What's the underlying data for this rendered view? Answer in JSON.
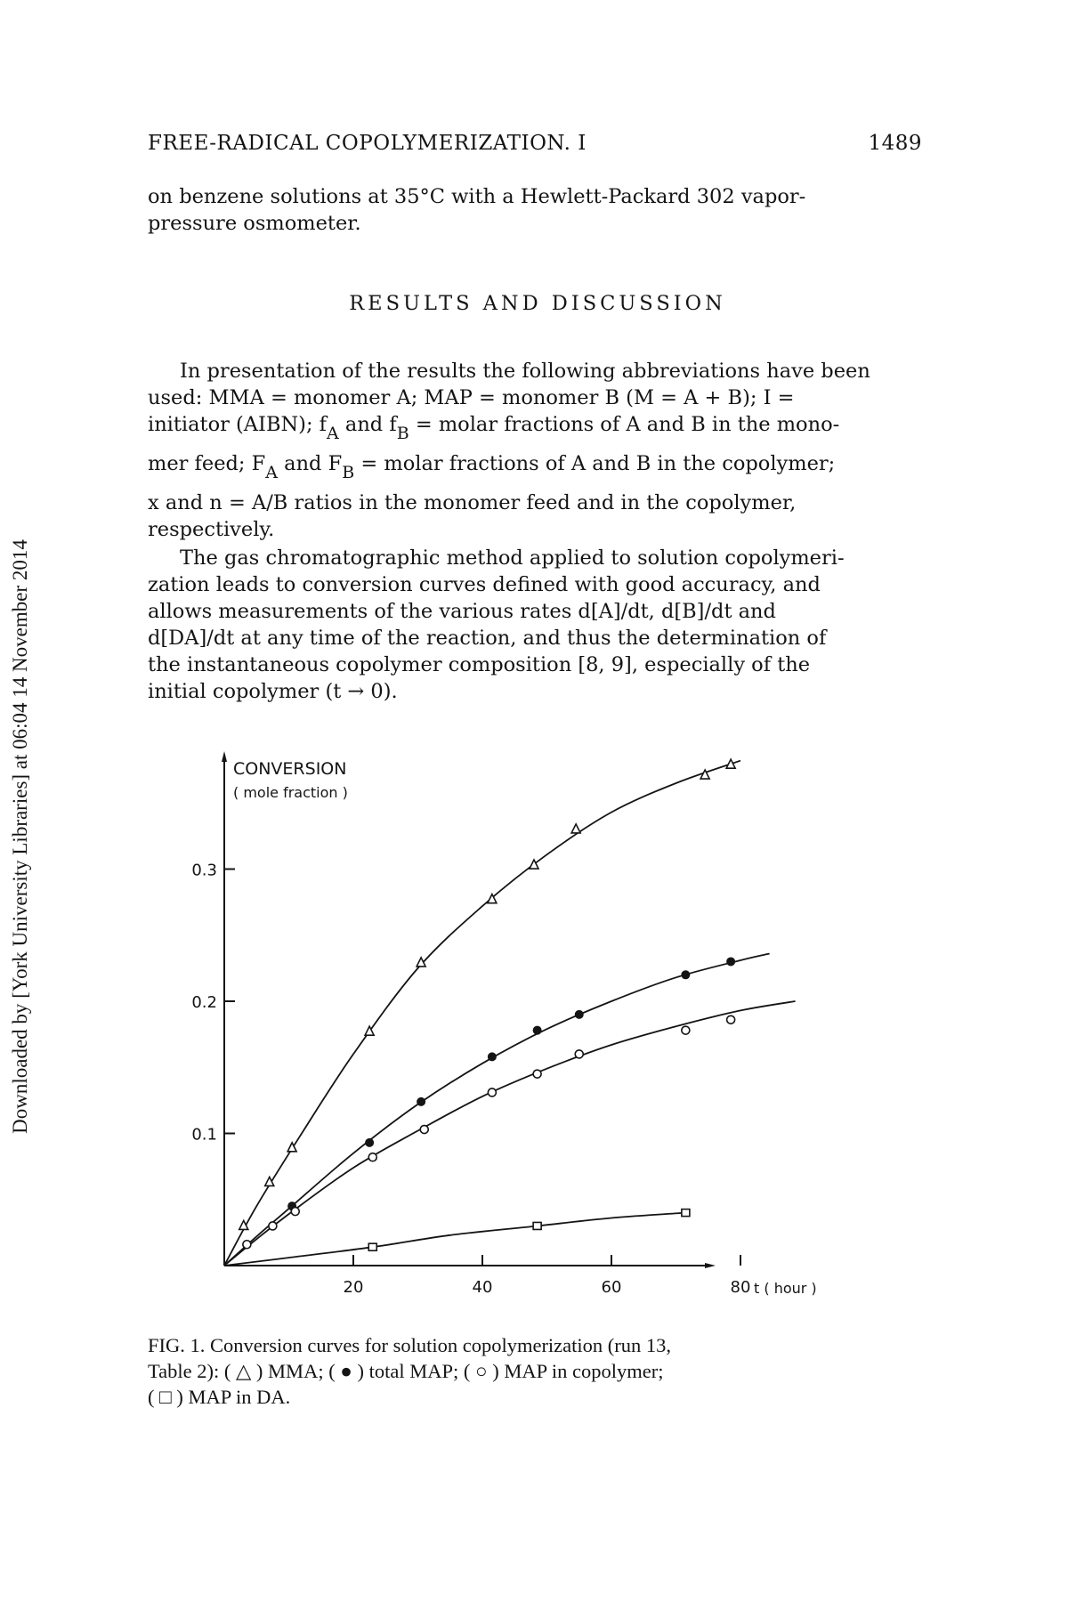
{
  "sidebar_note": "Downloaded by [York University Libraries] at 06:04 14 November 2014",
  "header": {
    "title": "FREE-RADICAL COPOLYMERIZATION. I",
    "page_number": "1489"
  },
  "intro_lines": [
    "on benzene solutions at 35°C with a Hewlett-Packard 302 vapor-",
    "pressure osmometer."
  ],
  "section_heading": "RESULTS AND DISCUSSION",
  "para1": {
    "line1": "In presentation of the results the following abbreviations have been",
    "line2": "used: MMA = monomer A; MAP = monomer B (M = A + B); I =",
    "line3_a": "initiator (AIBN); f",
    "line3_sub1": "A",
    "line3_b": " and f",
    "line3_sub2": "B",
    "line3_c": " = molar fractions of A and B in the mono-",
    "line4_a": "mer feed; F",
    "line4_sub1": "A",
    "line4_b": " and F",
    "line4_sub2": "B",
    "line4_c": " = molar fractions of A and B in the copolymer;",
    "line5": "x and n = A/B ratios in the monomer feed and in the copolymer,",
    "line6": "respectively."
  },
  "para2_lines": [
    "The gas chromatographic method applied to solution copolymeri-",
    "zation leads to conversion curves defined with good accuracy, and",
    "allows measurements of the various rates d[A]/dt, d[B]/dt and",
    "d[DA]/dt at any time of the reaction, and thus the determination of",
    "the instantaneous copolymer composition [8, 9], especially of the",
    "initial copolymer (t → 0)."
  ],
  "chart_data": {
    "type": "line",
    "ylabel": "CONVERSION",
    "ylabel_sub": "( mole fraction )",
    "xlabel": "t ( hour )",
    "xlim": [
      0,
      90
    ],
    "ylim": [
      0,
      0.4
    ],
    "x_ticks": [
      20,
      40,
      60,
      80
    ],
    "x_tick_labels": [
      "20",
      "40",
      "60",
      "80"
    ],
    "y_ticks": [
      0.1,
      0.2,
      0.3
    ],
    "y_tick_labels": [
      "0.1",
      "0.2",
      "0.3"
    ],
    "grid": false,
    "series": [
      {
        "marker": "triangle",
        "points": [
          [
            3,
            0.03
          ],
          [
            7,
            0.063
          ],
          [
            10.5,
            0.089
          ],
          [
            22.5,
            0.177
          ],
          [
            30.5,
            0.229
          ],
          [
            41.5,
            0.277
          ],
          [
            48,
            0.303
          ],
          [
            54.5,
            0.33
          ],
          [
            74.5,
            0.371
          ],
          [
            78.5,
            0.379
          ]
        ],
        "curve": [
          [
            0,
            0
          ],
          [
            5,
            0.045
          ],
          [
            12,
            0.1
          ],
          [
            20,
            0.16
          ],
          [
            30,
            0.225
          ],
          [
            40,
            0.272
          ],
          [
            50,
            0.311
          ],
          [
            60,
            0.343
          ],
          [
            70,
            0.365
          ],
          [
            80,
            0.382
          ]
        ]
      },
      {
        "marker": "filled-circle",
        "points": [
          [
            10.5,
            0.045
          ],
          [
            22.5,
            0.093
          ],
          [
            30.5,
            0.124
          ],
          [
            41.5,
            0.158
          ],
          [
            48.5,
            0.178
          ],
          [
            55,
            0.19
          ],
          [
            71.5,
            0.22
          ],
          [
            78.5,
            0.23
          ]
        ],
        "curve": [
          [
            0,
            0
          ],
          [
            5,
            0.022
          ],
          [
            10,
            0.043
          ],
          [
            20,
            0.085
          ],
          [
            30,
            0.122
          ],
          [
            40,
            0.153
          ],
          [
            50,
            0.179
          ],
          [
            60,
            0.2
          ],
          [
            70,
            0.218
          ],
          [
            80,
            0.231
          ],
          [
            84.5,
            0.236
          ]
        ]
      },
      {
        "marker": "open-circle",
        "points": [
          [
            3.5,
            0.016
          ],
          [
            7.5,
            0.03
          ],
          [
            11,
            0.041
          ],
          [
            23,
            0.082
          ],
          [
            31,
            0.103
          ],
          [
            41.5,
            0.131
          ],
          [
            48.5,
            0.145
          ],
          [
            55,
            0.16
          ],
          [
            71.5,
            0.178
          ],
          [
            78.5,
            0.186
          ]
        ],
        "curve": [
          [
            0,
            0
          ],
          [
            5,
            0.02
          ],
          [
            10,
            0.039
          ],
          [
            20,
            0.074
          ],
          [
            30,
            0.102
          ],
          [
            40,
            0.128
          ],
          [
            50,
            0.149
          ],
          [
            60,
            0.167
          ],
          [
            70,
            0.181
          ],
          [
            80,
            0.193
          ],
          [
            88.5,
            0.2
          ]
        ]
      },
      {
        "marker": "open-square",
        "points": [
          [
            23,
            0.014
          ],
          [
            48.5,
            0.03
          ],
          [
            71.5,
            0.04
          ]
        ],
        "curve": [
          [
            0,
            0
          ],
          [
            10,
            0.006
          ],
          [
            23,
            0.014
          ],
          [
            35,
            0.023
          ],
          [
            48.5,
            0.03
          ],
          [
            60,
            0.036
          ],
          [
            71.5,
            0.04
          ]
        ]
      }
    ]
  },
  "caption_lines": [
    "FIG. 1.  Conversion curves for solution copolymerization (run 13,",
    "Table 2):   ( △ )  MMA;   ( ● ) total MAP; ( ○ ) MAP in copolymer;",
    "( □ ) MAP in DA."
  ]
}
